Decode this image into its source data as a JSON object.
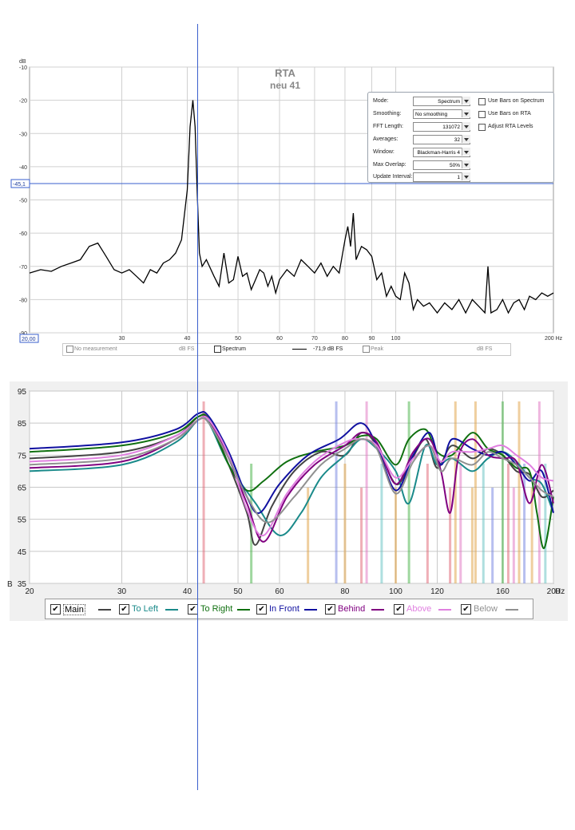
{
  "rta": {
    "title": "RTA",
    "subtitle": "neu 41",
    "y_unit": "dB",
    "x_unit": "200 Hz",
    "cursor_value": "-45,1",
    "cursor_x_value": "20,00",
    "settings": [
      {
        "label": "Mode:",
        "value": "Spectrum"
      },
      {
        "label": "Smoothing:",
        "value": "No smoothing"
      },
      {
        "label": "FFT Length:",
        "value": "131072"
      },
      {
        "label": "Averages:",
        "value": "32"
      },
      {
        "label": "Window:",
        "value": "Blackman-Harris 4"
      },
      {
        "label": "Max Overlap:",
        "value": "50%"
      },
      {
        "label": "Update Interval:",
        "value": "1"
      }
    ],
    "options": [
      {
        "label": "Use Bars on Spectrum",
        "checked": false
      },
      {
        "label": "Use Bars on RTA",
        "checked": false
      },
      {
        "label": "Adjust RTA Levels",
        "checked": false
      }
    ],
    "legend": {
      "no_measurement": "No measurement",
      "dbfs1": "dB FS",
      "spectrum": "Spectrum",
      "spectrum_value": "-71,9 dB FS",
      "peak": "Peak",
      "dbfs2": "dB FS"
    }
  },
  "fr": {
    "legend": [
      {
        "name": "Main",
        "color": "#000000",
        "line": "#444444"
      },
      {
        "name": "To Left",
        "color": "#1a8a8a",
        "line": "#1a8a8a"
      },
      {
        "name": "To Right",
        "color": "#107010",
        "line": "#107010"
      },
      {
        "name": "In Front",
        "color": "#1010a0",
        "line": "#1010a0"
      },
      {
        "name": "Behind",
        "color": "#800080",
        "line": "#800080"
      },
      {
        "name": "Above",
        "color": "#e080e0",
        "line": "#e080e0"
      },
      {
        "name": "Below",
        "color": "#909090",
        "line": "#909090"
      }
    ]
  },
  "chart_data": [
    {
      "type": "line",
      "title": "RTA",
      "subtitle": "neu 41",
      "xlabel": "",
      "ylabel": "dB",
      "x_scale": "log",
      "xlim": [
        20,
        200
      ],
      "ylim": [
        -90,
        -10
      ],
      "x_ticks": [
        30,
        40,
        50,
        60,
        70,
        80,
        90,
        100
      ],
      "x_tick_labels": [
        "30",
        "40",
        "50",
        "60",
        "70",
        "80",
        "90",
        "100"
      ],
      "x_end_label": "200 Hz",
      "y_ticks": [
        -10,
        -20,
        -30,
        -40,
        -50,
        -60,
        -70,
        -80,
        -90
      ],
      "y_tick_labels": [
        "-10",
        "-20",
        "-30",
        "-40",
        "-50",
        "-60",
        "-70",
        "-80",
        "-90"
      ],
      "grid": true,
      "series": [
        {
          "name": "Spectrum",
          "color": "#000000",
          "x": [
            20,
            21,
            22,
            23,
            24,
            25,
            26,
            27,
            28,
            29,
            30,
            31,
            32,
            33,
            34,
            35,
            36,
            37,
            38,
            39,
            40,
            40.5,
            41,
            41.4,
            41.8,
            42.2,
            42.7,
            43.5,
            45,
            46,
            47,
            48,
            49,
            50,
            51,
            52,
            53,
            54,
            55,
            56,
            57,
            58,
            59,
            60,
            62,
            64,
            66,
            68,
            70,
            72,
            74,
            76,
            78,
            80,
            81,
            82,
            83,
            84,
            85,
            86,
            88,
            90,
            92,
            94,
            96,
            98,
            100,
            102,
            104,
            106,
            108,
            110,
            113,
            116,
            120,
            124,
            128,
            132,
            136,
            140,
            144,
            148,
            150,
            152,
            156,
            160,
            164,
            168,
            172,
            176,
            180,
            185,
            190,
            195,
            200
          ],
          "y": [
            -72,
            -71,
            -71.5,
            -70,
            -69,
            -68,
            -64,
            -63,
            -67,
            -71,
            -72,
            -71,
            -73,
            -75,
            -71,
            -72,
            -69,
            -68,
            -66,
            -62,
            -47,
            -28,
            -20,
            -28,
            -48,
            -66,
            -70,
            -68,
            -73,
            -76,
            -66,
            -75,
            -74,
            -67,
            -73,
            -72,
            -77,
            -74,
            -71,
            -72,
            -76,
            -73,
            -78,
            -74,
            -71,
            -73,
            -68,
            -70,
            -72,
            -69,
            -73,
            -70,
            -72,
            -62,
            -58,
            -64,
            -54,
            -68,
            -66,
            -64,
            -65,
            -67,
            -74,
            -72,
            -79,
            -76,
            -79,
            -80,
            -72,
            -75,
            -83,
            -80,
            -82,
            -81,
            -84,
            -81,
            -83,
            -80,
            -84,
            -80,
            -82,
            -84,
            -70,
            -84,
            -83,
            -80,
            -84,
            -81,
            -80,
            -83,
            -79,
            -80,
            -78,
            -79,
            -78
          ]
        }
      ]
    },
    {
      "type": "line",
      "title": "",
      "xlabel": "",
      "ylabel": "",
      "x_scale": "log",
      "xlim": [
        20,
        200
      ],
      "ylim": [
        35,
        95
      ],
      "x_ticks": [
        20,
        30,
        40,
        50,
        60,
        80,
        100,
        120,
        160,
        200
      ],
      "x_tick_labels": [
        "20",
        "30",
        "40",
        "50",
        "60",
        "80",
        "100",
        "120",
        "160",
        "200"
      ],
      "x_end_label": "Hz",
      "y_ticks": [
        95,
        85,
        75,
        65,
        55,
        45,
        35
      ],
      "y_tick_labels": [
        "95",
        "85",
        "75",
        "65",
        "55",
        "45",
        "35"
      ],
      "y_bottom_prefix": "B",
      "grid": true,
      "modes": [
        {
          "x": 43,
          "color": "#e06070"
        },
        {
          "x": 53,
          "color": "#40b040"
        },
        {
          "x": 68,
          "color": "#e0a040"
        },
        {
          "x": 77,
          "color": "#7080e0"
        },
        {
          "x": 80,
          "color": "#e0a040"
        },
        {
          "x": 86,
          "color": "#e06070"
        },
        {
          "x": 88,
          "color": "#e070c0"
        },
        {
          "x": 94,
          "color": "#60c0c0"
        },
        {
          "x": 100,
          "color": "#e0a040"
        },
        {
          "x": 106,
          "color": "#40b040"
        },
        {
          "x": 115,
          "color": "#e06070"
        },
        {
          "x": 127,
          "color": "#e06070"
        },
        {
          "x": 130,
          "color": "#e0a040"
        },
        {
          "x": 133,
          "color": "#e070c0"
        },
        {
          "x": 140,
          "color": "#e0a040"
        },
        {
          "x": 142,
          "color": "#e0a040"
        },
        {
          "x": 147,
          "color": "#60c0c0"
        },
        {
          "x": 153,
          "color": "#7080e0"
        },
        {
          "x": 160,
          "color": "#40b040"
        },
        {
          "x": 164,
          "color": "#e06070"
        },
        {
          "x": 168,
          "color": "#e070c0"
        },
        {
          "x": 172,
          "color": "#e0a040"
        },
        {
          "x": 176,
          "color": "#7080e0"
        },
        {
          "x": 182,
          "color": "#e0a040"
        },
        {
          "x": 188,
          "color": "#e070c0"
        },
        {
          "x": 193,
          "color": "#60c0c0"
        }
      ],
      "series": [
        {
          "name": "Main",
          "color": "#444444",
          "x": [
            20,
            30,
            38,
            42,
            44,
            48,
            52,
            54,
            58,
            64,
            72,
            80,
            86,
            92,
            100,
            106,
            114,
            120,
            128,
            140,
            150,
            160,
            170,
            180,
            190,
            200
          ],
          "y": [
            74,
            76,
            81,
            87,
            86,
            72,
            57,
            47,
            59,
            70,
            76,
            75,
            82,
            78,
            66,
            72,
            80,
            71,
            78,
            74,
            77,
            75,
            70,
            69,
            62,
            64
          ]
        },
        {
          "name": "To Left",
          "color": "#1a8a8a",
          "x": [
            20,
            30,
            38,
            42,
            44,
            48,
            54,
            60,
            66,
            72,
            80,
            86,
            92,
            100,
            106,
            114,
            120,
            128,
            140,
            150,
            160,
            170,
            180,
            190,
            200
          ],
          "y": [
            70,
            72,
            79,
            86,
            85,
            72,
            60,
            50,
            57,
            68,
            75,
            80,
            77,
            70,
            60,
            78,
            72,
            74,
            70,
            74,
            76,
            73,
            68,
            66,
            57
          ]
        },
        {
          "name": "To Right",
          "color": "#107010",
          "x": [
            20,
            30,
            38,
            42,
            44,
            48,
            52,
            56,
            62,
            70,
            80,
            86,
            92,
            100,
            106,
            114,
            120,
            128,
            140,
            150,
            160,
            170,
            180,
            186,
            192,
            200
          ],
          "y": [
            76,
            78,
            82,
            87,
            86,
            72,
            64,
            67,
            73,
            76,
            78,
            81,
            80,
            72,
            80,
            83,
            76,
            75,
            82,
            77,
            75,
            71,
            70,
            57,
            46,
            62
          ]
        },
        {
          "name": "In Front",
          "color": "#1010a0",
          "x": [
            20,
            30,
            38,
            42,
            44,
            48,
            52,
            55,
            60,
            68,
            78,
            86,
            92,
            100,
            108,
            116,
            122,
            128,
            140,
            150,
            160,
            170,
            180,
            190,
            200
          ],
          "y": [
            77,
            79,
            83,
            88,
            87,
            76,
            62,
            57,
            66,
            75,
            80,
            85,
            78,
            64,
            75,
            82,
            72,
            80,
            77,
            75,
            76,
            72,
            67,
            70,
            57
          ]
        },
        {
          "name": "Behind",
          "color": "#800080",
          "x": [
            20,
            30,
            38,
            42,
            44,
            48,
            52,
            56,
            62,
            70,
            80,
            86,
            92,
            100,
            108,
            116,
            122,
            127,
            132,
            140,
            150,
            160,
            170,
            180,
            190,
            200
          ],
          "y": [
            71,
            73,
            80,
            86,
            86,
            74,
            60,
            48,
            62,
            72,
            78,
            82,
            79,
            66,
            76,
            80,
            70,
            57,
            75,
            80,
            75,
            74,
            73,
            60,
            72,
            60
          ]
        },
        {
          "name": "Above",
          "color": "#e080e0",
          "x": [
            20,
            30,
            38,
            42,
            44,
            48,
            52,
            56,
            62,
            70,
            80,
            86,
            92,
            100,
            108,
            116,
            122,
            128,
            140,
            150,
            160,
            170,
            180,
            190,
            200
          ],
          "y": [
            73,
            75,
            81,
            86,
            86,
            75,
            58,
            50,
            63,
            73,
            79,
            80,
            78,
            68,
            74,
            78,
            73,
            76,
            76,
            77,
            78,
            75,
            72,
            68,
            67
          ]
        },
        {
          "name": "Below",
          "color": "#909090",
          "x": [
            20,
            30,
            38,
            42,
            44,
            48,
            52,
            57,
            64,
            72,
            80,
            86,
            92,
            100,
            108,
            116,
            122,
            128,
            140,
            150,
            160,
            170,
            180,
            190,
            200
          ],
          "y": [
            72,
            74,
            80,
            86,
            85,
            74,
            62,
            54,
            62,
            72,
            77,
            80,
            77,
            63,
            73,
            78,
            70,
            74,
            72,
            76,
            74,
            72,
            68,
            64,
            62
          ]
        }
      ]
    }
  ]
}
